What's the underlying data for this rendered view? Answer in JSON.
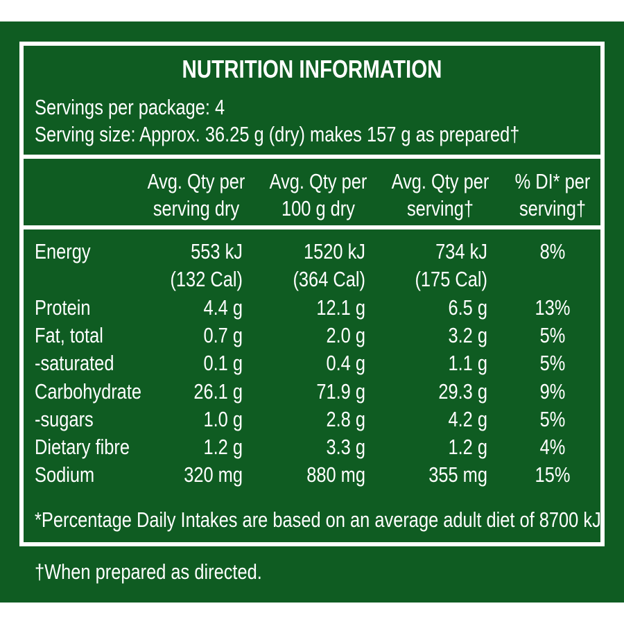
{
  "title": "NUTRITION INFORMATION",
  "servings_per_package": "Servings per package: 4",
  "serving_size": "Serving size: Approx. 36.25 g (dry) makes 157 g as prepared†",
  "columns": [
    {
      "line1": "Avg. Qty per",
      "line2": "serving dry"
    },
    {
      "line1": "Avg. Qty per",
      "line2": "100 g dry"
    },
    {
      "line1": "Avg. Qty per",
      "line2": "serving†"
    },
    {
      "line1": "% DI* per",
      "line2": "serving†"
    }
  ],
  "rows": [
    {
      "label": "Energy",
      "values": [
        "553 kJ",
        "1520 kJ",
        "734 kJ",
        "8%"
      ]
    },
    {
      "label": "",
      "values": [
        "(132 Cal)",
        "(364 Cal)",
        "(175 Cal)",
        ""
      ]
    },
    {
      "label": "Protein",
      "values": [
        "4.4 g",
        "12.1 g",
        "6.5 g",
        "13%"
      ]
    },
    {
      "label": "Fat, total",
      "values": [
        "0.7 g",
        "2.0 g",
        "3.2 g",
        "5%"
      ]
    },
    {
      "label": "-saturated",
      "values": [
        "0.1 g",
        "0.4 g",
        "1.1 g",
        "5%"
      ]
    },
    {
      "label": "Carbohydrate",
      "values": [
        "26.1 g",
        "71.9 g",
        "29.3 g",
        "9%"
      ]
    },
    {
      "label": "-sugars",
      "values": [
        "1.0 g",
        "2.8 g",
        "4.2 g",
        "5%"
      ]
    },
    {
      "label": "Dietary fibre",
      "values": [
        "1.2 g",
        "3.3 g",
        "1.2 g",
        "4%"
      ]
    },
    {
      "label": "Sodium",
      "values": [
        "320 mg",
        "880 mg",
        "355 mg",
        "15%"
      ]
    }
  ],
  "footnote_di": "*Percentage Daily Intakes are based on an average adult diet of 8700 kJ.",
  "footnote_prepared": "†When prepared as directed.",
  "colors": {
    "background": "#0f5c22",
    "text": "#ffffff"
  }
}
